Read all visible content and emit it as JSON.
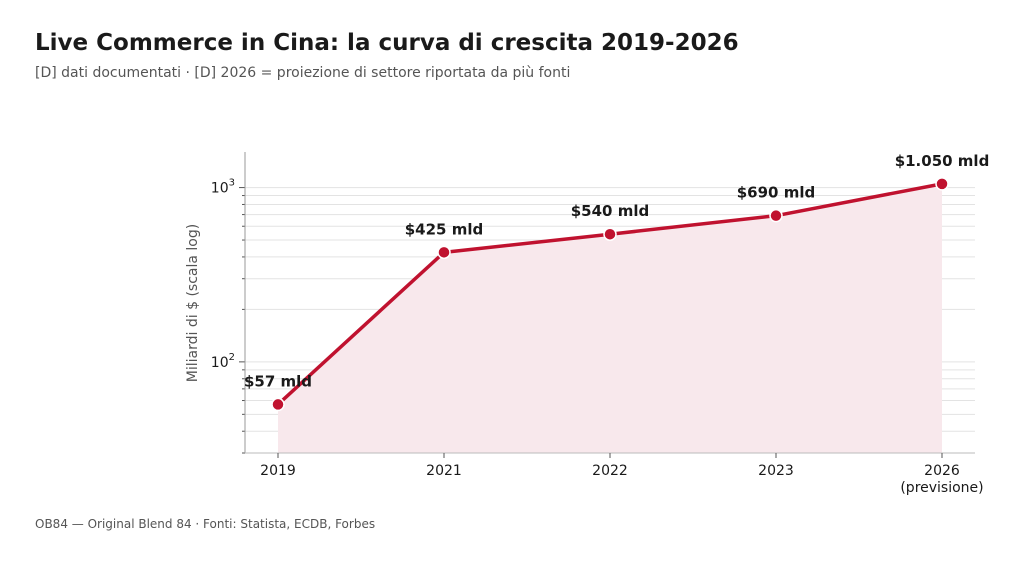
{
  "header": {
    "title": "Live Commerce in Cina: la curva di crescita 2019-2026",
    "subtitle": "[D] dati documentati · [D] 2026 = proiezione di settore riportata da più fonti"
  },
  "footer": {
    "source": "OB84 — Original Blend 84 · Fonti: Statista, ECDB, Forbes"
  },
  "chart_data": {
    "type": "line",
    "ylabel": "Miliardi di $ (scala log)",
    "y_scale": "log",
    "ylim": [
      30,
      1600
    ],
    "y_ticks": [
      {
        "base": "10",
        "exp": "2"
      },
      {
        "base": "10",
        "exp": "3"
      }
    ],
    "grid": true,
    "line_color": "#c0122f",
    "fill_color": "#f8e8ec",
    "categories": [
      "2019",
      "2021",
      "2022",
      "2023",
      "2026"
    ],
    "category_sublabels": [
      "",
      "",
      "",
      "",
      "(previsione)"
    ],
    "values": [
      57,
      425,
      540,
      690,
      1050
    ],
    "data_labels": [
      "$57 mld",
      "$425 mld",
      "$540 mld",
      "$690 mld",
      "$1.050 mld"
    ]
  }
}
